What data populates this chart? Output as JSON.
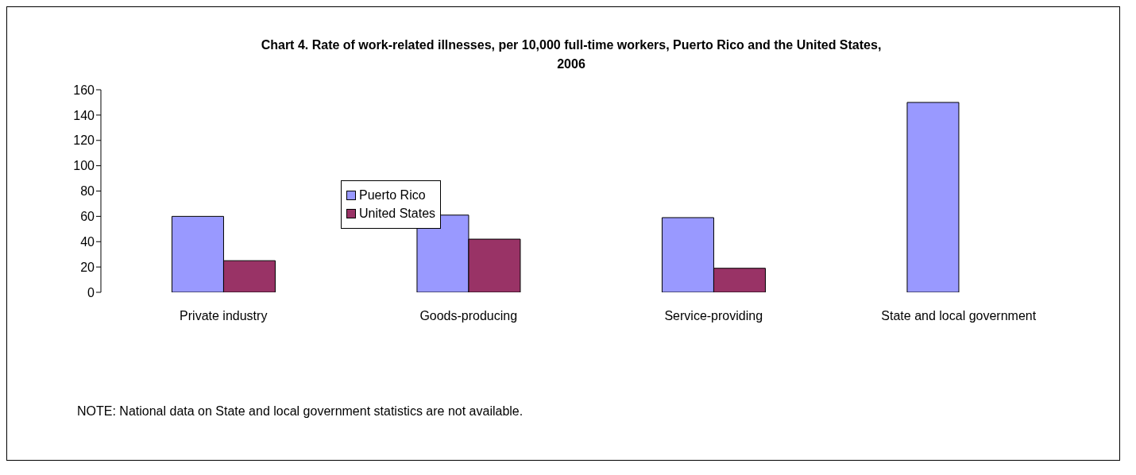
{
  "chart_data": {
    "type": "bar",
    "title": "Chart 4. Rate of work-related illnesses, per 10,000 full-time workers, Puerto Rico and the United States, 2006",
    "categories": [
      "Private industry",
      "Goods-producing",
      "Service-providing",
      "State and local government"
    ],
    "series": [
      {
        "name": "Puerto Rico",
        "color": "#9999ff",
        "values": [
          60,
          61,
          59,
          150
        ]
      },
      {
        "name": "United States",
        "color": "#993366",
        "values": [
          25,
          42,
          19,
          null
        ]
      }
    ],
    "ylim": [
      0,
      160
    ],
    "yticks": [
      0,
      20,
      40,
      60,
      80,
      100,
      120,
      140,
      160
    ],
    "grid": false,
    "legend": "left",
    "annotations": [
      "NOTE: National data on State and local government statistics are not available."
    ]
  }
}
